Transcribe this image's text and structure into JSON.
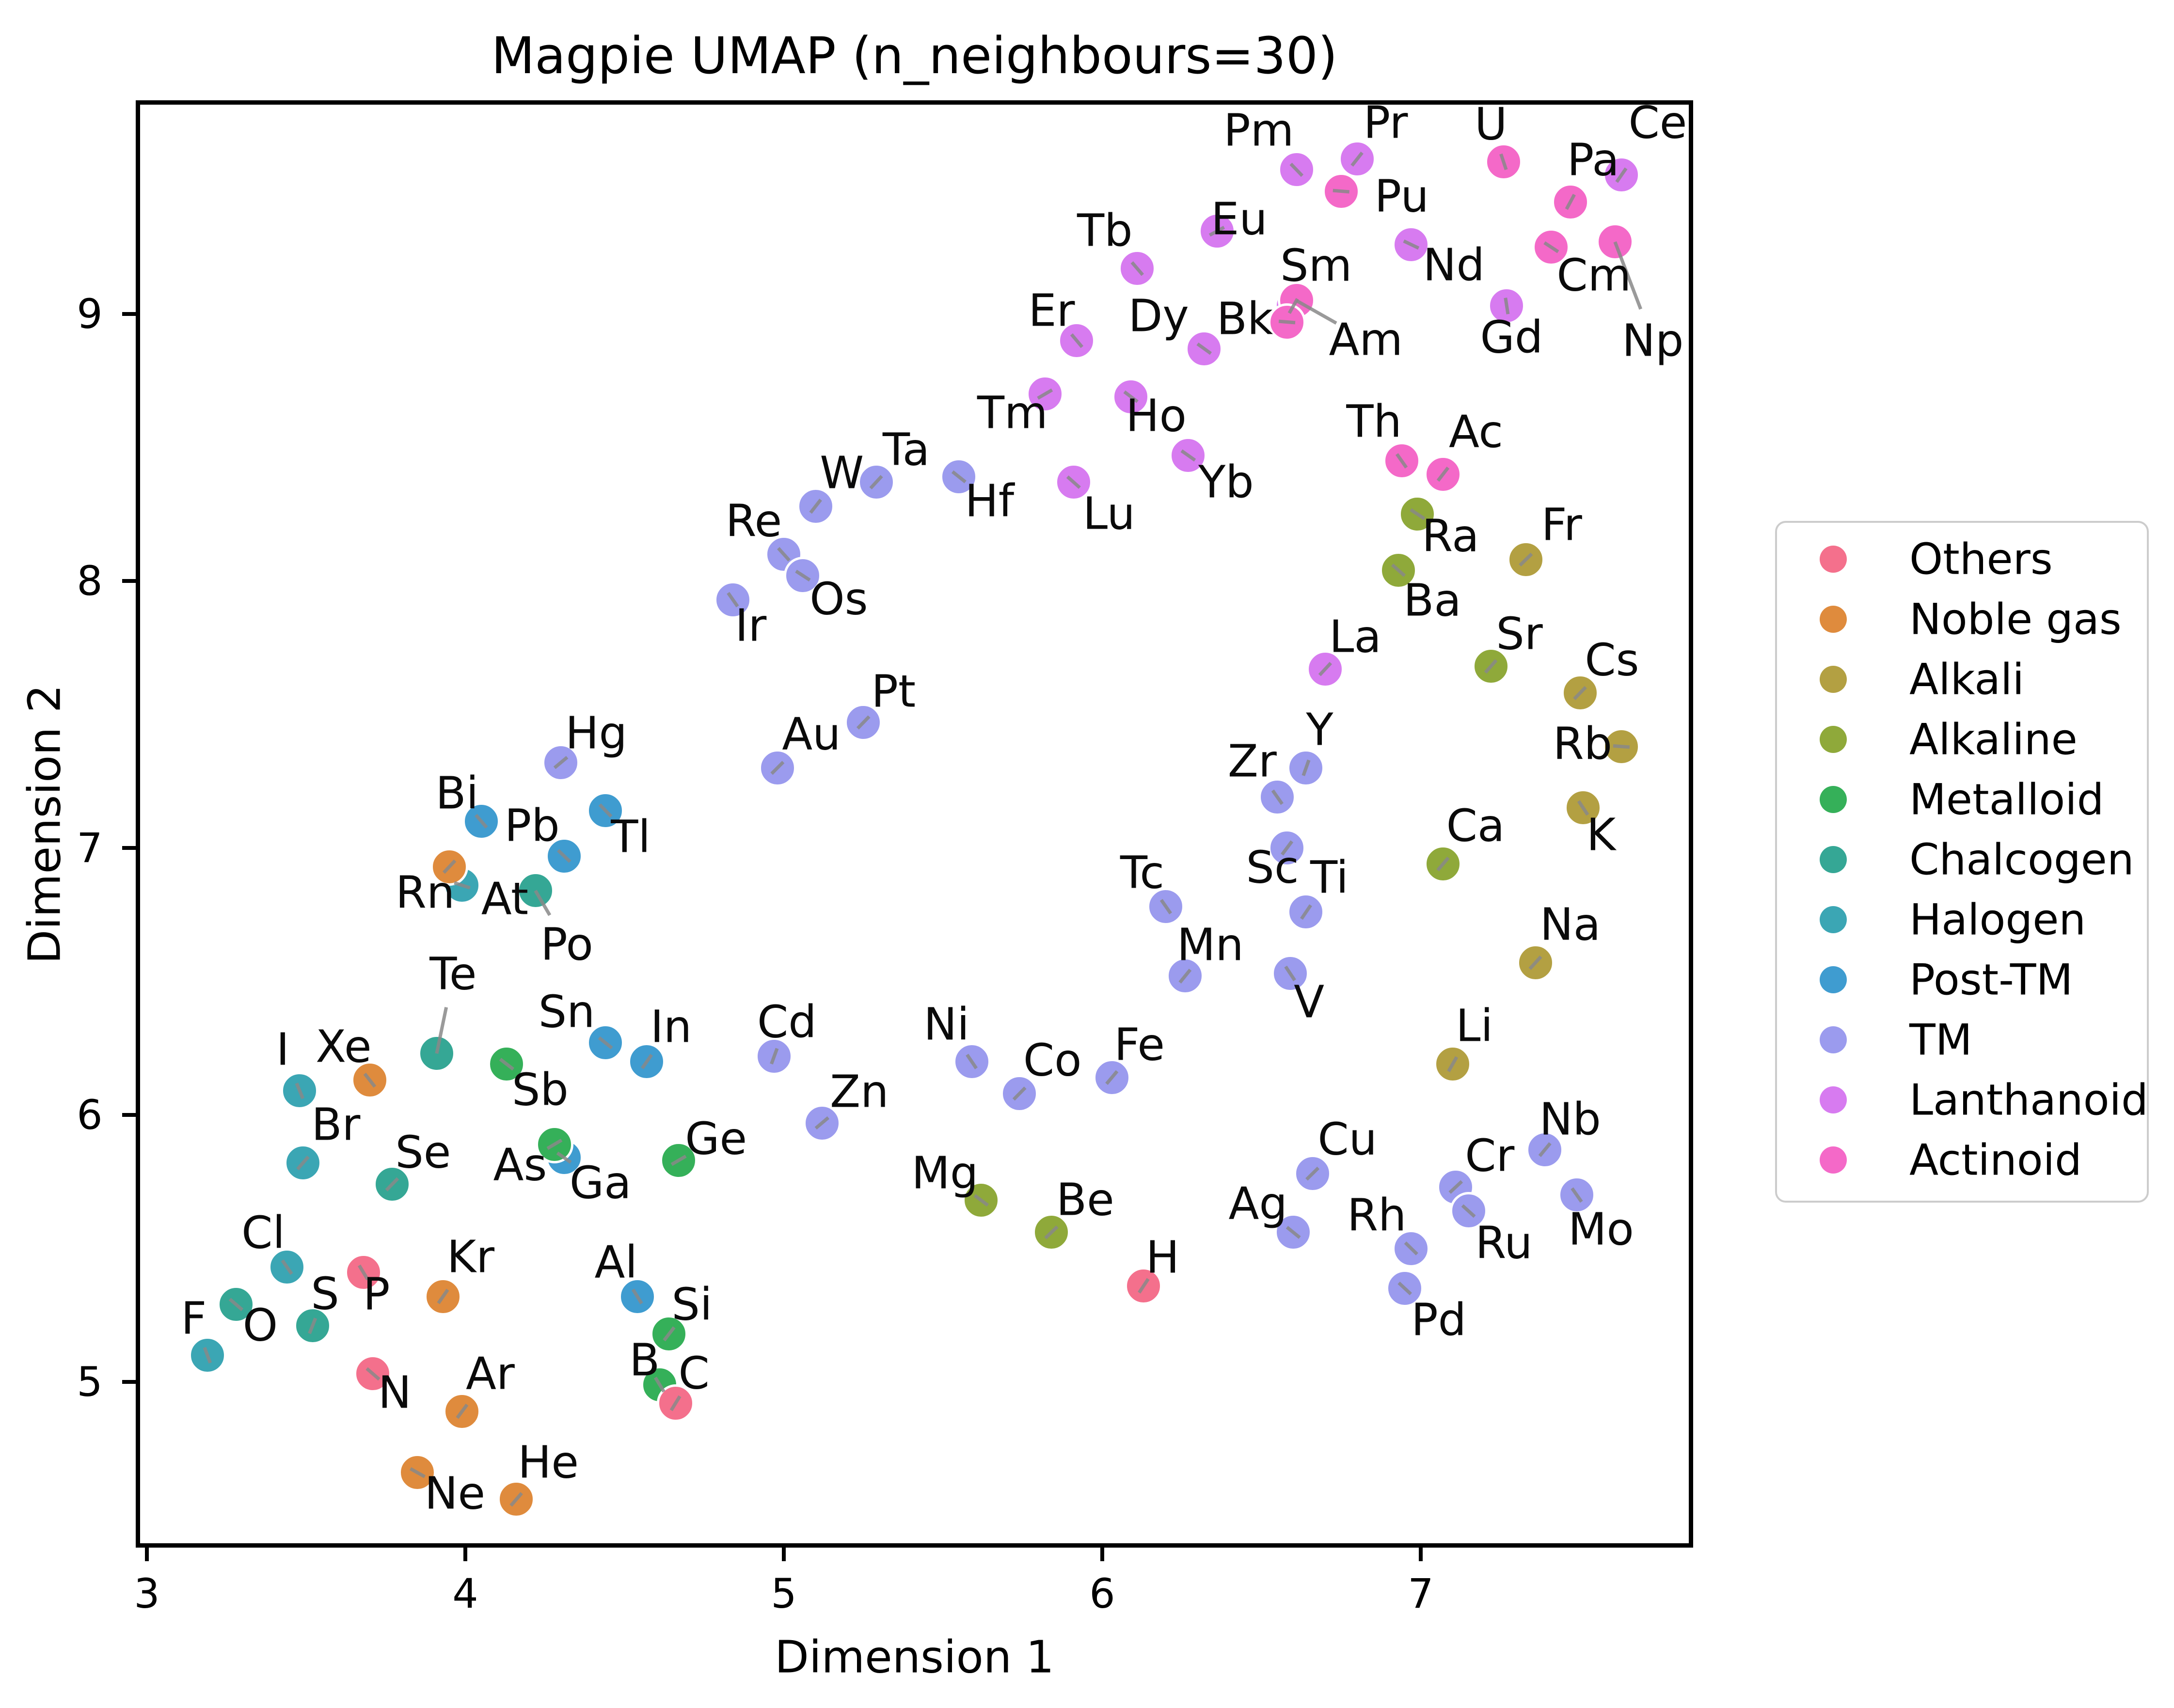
{
  "title": "Magpie UMAP (n_neighbours=30)",
  "axes": {
    "xlabel": "Dimension 1",
    "ylabel": "Dimension 2",
    "x_ticks": [
      3,
      4,
      5,
      6,
      7
    ],
    "y_ticks": [
      5,
      6,
      7,
      8,
      9
    ]
  },
  "legend": [
    {
      "label": "Others",
      "color": "#f4708c"
    },
    {
      "label": "Noble gas",
      "color": "#df8b3d"
    },
    {
      "label": "Alkali",
      "color": "#b3a042"
    },
    {
      "label": "Alkaline",
      "color": "#8fa93a"
    },
    {
      "label": "Metalloid",
      "color": "#35b059"
    },
    {
      "label": "Chalcogen",
      "color": "#35a795"
    },
    {
      "label": "Halogen",
      "color": "#3ba6b4"
    },
    {
      "label": "Post-TM",
      "color": "#3f9cd0"
    },
    {
      "label": "TM",
      "color": "#9b9bee"
    },
    {
      "label": "Lanthanoid",
      "color": "#d77bf0"
    },
    {
      "label": "Actinoid",
      "color": "#f469c8"
    }
  ],
  "chart_data": {
    "type": "scatter",
    "title": "Magpie UMAP (n_neighbours=30)",
    "xlabel": "Dimension 1",
    "ylabel": "Dimension 2",
    "xlim": [
      2.98,
      7.86
    ],
    "ylim": [
      4.36,
      9.79
    ],
    "grid": false,
    "legend_position": "right",
    "note": "Each point is a chemical element labeled by symbol; lx/ly are label pixel offsets; conn=true draws a gray connector line from point to label.",
    "series": [
      {
        "name": "TM",
        "color": "#9b9bee",
        "points": [
          {
            "el": "Sc",
            "x": 6.58,
            "y": 7.0,
            "lx": -30,
            "ly": 40
          },
          {
            "el": "Ti",
            "x": 6.64,
            "y": 6.76,
            "lx": 48,
            "ly": -71
          },
          {
            "el": "V",
            "x": 6.59,
            "y": 6.53,
            "lx": 39,
            "ly": 59
          },
          {
            "el": "Cr",
            "x": 7.11,
            "y": 5.73,
            "lx": 70,
            "ly": -65
          },
          {
            "el": "Mn",
            "x": 6.26,
            "y": 6.52,
            "lx": 52,
            "ly": -64
          },
          {
            "el": "Fe",
            "x": 6.03,
            "y": 6.14,
            "lx": 57,
            "ly": -68
          },
          {
            "el": "Co",
            "x": 5.74,
            "y": 6.08,
            "lx": 68,
            "ly": -69
          },
          {
            "el": "Ni",
            "x": 5.59,
            "y": 6.2,
            "lx": -52,
            "ly": -77
          },
          {
            "el": "Cu",
            "x": 6.66,
            "y": 5.78,
            "lx": 72,
            "ly": -71
          },
          {
            "el": "Zn",
            "x": 5.12,
            "y": 5.97,
            "lx": 77,
            "ly": -65
          },
          {
            "el": "Y",
            "x": 6.64,
            "y": 7.3,
            "lx": 28,
            "ly": -79
          },
          {
            "el": "Zr",
            "x": 6.55,
            "y": 7.19,
            "lx": -52,
            "ly": -74
          },
          {
            "el": "Nb",
            "x": 7.39,
            "y": 5.87,
            "lx": 52,
            "ly": -63
          },
          {
            "el": "Mo",
            "x": 7.49,
            "y": 5.7,
            "lx": 50,
            "ly": 71
          },
          {
            "el": "Tc",
            "x": 6.2,
            "y": 6.78,
            "lx": -49,
            "ly": -70
          },
          {
            "el": "Ru",
            "x": 7.15,
            "y": 5.64,
            "lx": 73,
            "ly": 66
          },
          {
            "el": "Rh",
            "x": 6.97,
            "y": 5.5,
            "lx": -71,
            "ly": -69
          },
          {
            "el": "Pd",
            "x": 6.95,
            "y": 5.35,
            "lx": 70,
            "ly": 65
          },
          {
            "el": "Ag",
            "x": 6.6,
            "y": 5.56,
            "lx": -73,
            "ly": -59
          },
          {
            "el": "Cd",
            "x": 4.97,
            "y": 6.22,
            "lx": 26,
            "ly": -71
          },
          {
            "el": "Hf",
            "x": 5.55,
            "y": 8.39,
            "lx": 63,
            "ly": 50
          },
          {
            "el": "Ta",
            "x": 5.29,
            "y": 8.37,
            "lx": 62,
            "ly": -67
          },
          {
            "el": "W",
            "x": 5.1,
            "y": 8.28,
            "lx": 54,
            "ly": -69
          },
          {
            "el": "Re",
            "x": 5.0,
            "y": 8.1,
            "lx": -62,
            "ly": -69
          },
          {
            "el": "Os",
            "x": 5.06,
            "y": 8.02,
            "lx": 74,
            "ly": 48
          },
          {
            "el": "Ir",
            "x": 4.84,
            "y": 7.93,
            "lx": 37,
            "ly": 53
          },
          {
            "el": "Pt",
            "x": 5.25,
            "y": 7.47,
            "lx": 62,
            "ly": -64
          },
          {
            "el": "Au",
            "x": 4.98,
            "y": 7.3,
            "lx": 70,
            "ly": -70
          },
          {
            "el": "Hg",
            "x": 4.3,
            "y": 7.32,
            "lx": 73,
            "ly": -61
          }
        ]
      },
      {
        "name": "Lanthanoid",
        "color": "#d77bf0",
        "points": [
          {
            "el": "La",
            "x": 6.7,
            "y": 7.67,
            "lx": 62,
            "ly": -67
          },
          {
            "el": "Ce",
            "x": 7.63,
            "y": 9.52,
            "lx": 75,
            "ly": -108
          },
          {
            "el": "Pr",
            "x": 6.8,
            "y": 9.58,
            "lx": 59,
            "ly": -75
          },
          {
            "el": "Nd",
            "x": 6.97,
            "y": 9.26,
            "lx": 88,
            "ly": 42
          },
          {
            "el": "Pm",
            "x": 6.61,
            "y": 9.54,
            "lx": -78,
            "ly": -81
          },
          {
            "el": "Sm",
            "x": 6.6,
            "y": 9.03,
            "lx": 47,
            "ly": -83
          },
          {
            "el": "Eu",
            "x": 6.36,
            "y": 9.31,
            "lx": 46,
            "ly": -25
          },
          {
            "el": "Gd",
            "x": 7.27,
            "y": 9.03,
            "lx": 10,
            "ly": 65
          },
          {
            "el": "Tb",
            "x": 6.11,
            "y": 9.17,
            "lx": -67,
            "ly": -78
          },
          {
            "el": "Dy",
            "x": 6.32,
            "y": 8.87,
            "lx": -94,
            "ly": -68
          },
          {
            "el": "Ho",
            "x": 6.09,
            "y": 8.69,
            "lx": 52,
            "ly": 39
          },
          {
            "el": "Er",
            "x": 5.92,
            "y": 8.9,
            "lx": -52,
            "ly": -62
          },
          {
            "el": "Tm",
            "x": 5.82,
            "y": 8.7,
            "lx": -67,
            "ly": 39
          },
          {
            "el": "Yb",
            "x": 6.27,
            "y": 8.47,
            "lx": 78,
            "ly": 55
          },
          {
            "el": "Lu",
            "x": 5.91,
            "y": 8.37,
            "lx": 73,
            "ly": 65
          }
        ]
      },
      {
        "name": "Post-TM",
        "color": "#3f9cd0",
        "points": [
          {
            "el": "Al",
            "x": 4.54,
            "y": 5.32,
            "lx": -44,
            "ly": -71
          },
          {
            "el": "Ga",
            "x": 4.31,
            "y": 5.84,
            "lx": 75,
            "ly": 52
          },
          {
            "el": "In",
            "x": 4.57,
            "y": 6.2,
            "lx": 50,
            "ly": -72
          },
          {
            "el": "Sn",
            "x": 4.44,
            "y": 6.27,
            "lx": -80,
            "ly": -64
          },
          {
            "el": "Tl",
            "x": 4.44,
            "y": 7.14,
            "lx": 52,
            "ly": 54
          },
          {
            "el": "Pb",
            "x": 4.31,
            "y": 6.97,
            "lx": -66,
            "ly": -63
          },
          {
            "el": "Bi",
            "x": 4.05,
            "y": 7.1,
            "lx": -50,
            "ly": -58
          }
        ]
      },
      {
        "name": "Halogen",
        "color": "#3ba6b4",
        "points": [
          {
            "el": "F",
            "x": 3.19,
            "y": 5.1,
            "lx": -28,
            "ly": -76
          },
          {
            "el": "Cl",
            "x": 3.44,
            "y": 5.43,
            "lx": -49,
            "ly": -71
          },
          {
            "el": "Br",
            "x": 3.49,
            "y": 5.82,
            "lx": 68,
            "ly": -79
          },
          {
            "el": "I",
            "x": 3.48,
            "y": 6.09,
            "lx": -35,
            "ly": -85
          },
          {
            "el": "At",
            "x": 3.99,
            "y": 6.86,
            "lx": 88,
            "ly": 28
          }
        ]
      },
      {
        "name": "Chalcogen",
        "color": "#35a795",
        "points": [
          {
            "el": "O",
            "x": 3.28,
            "y": 5.29,
            "lx": 50,
            "ly": 43
          },
          {
            "el": "S",
            "x": 3.52,
            "y": 5.21,
            "lx": 26,
            "ly": -66
          },
          {
            "el": "Se",
            "x": 3.77,
            "y": 5.74,
            "lx": 64,
            "ly": -66
          },
          {
            "el": "Te",
            "x": 3.91,
            "y": 6.23,
            "lx": 34,
            "ly": -164,
            "conn": true
          },
          {
            "el": "Po",
            "x": 4.22,
            "y": 6.84,
            "lx": 65,
            "ly": 111,
            "conn": true
          }
        ]
      },
      {
        "name": "Metalloid",
        "color": "#35b059",
        "points": [
          {
            "el": "B",
            "x": 4.61,
            "y": 4.99,
            "lx": -31,
            "ly": -51
          },
          {
            "el": "Si",
            "x": 4.64,
            "y": 5.18,
            "lx": 47,
            "ly": -61
          },
          {
            "el": "Ge",
            "x": 4.67,
            "y": 5.83,
            "lx": 77,
            "ly": -45
          },
          {
            "el": "As",
            "x": 4.28,
            "y": 5.89,
            "lx": -71,
            "ly": 42
          },
          {
            "el": "Sb",
            "x": 4.13,
            "y": 6.19,
            "lx": 69,
            "ly": 53
          }
        ]
      },
      {
        "name": "Alkaline",
        "color": "#8fa93a",
        "points": [
          {
            "el": "Be",
            "x": 5.84,
            "y": 5.56,
            "lx": 70,
            "ly": -67
          },
          {
            "el": "Mg",
            "x": 5.62,
            "y": 5.68,
            "lx": -75,
            "ly": -56
          },
          {
            "el": "Ca",
            "x": 7.07,
            "y": 6.94,
            "lx": 67,
            "ly": -79
          },
          {
            "el": "Sr",
            "x": 7.22,
            "y": 7.68,
            "lx": 59,
            "ly": -67
          },
          {
            "el": "Ba",
            "x": 6.93,
            "y": 8.04,
            "lx": 70,
            "ly": 62
          },
          {
            "el": "Ra",
            "x": 6.99,
            "y": 8.25,
            "lx": 68,
            "ly": 45
          }
        ]
      },
      {
        "name": "Alkali",
        "color": "#b3a042",
        "points": [
          {
            "el": "Li",
            "x": 7.1,
            "y": 6.19,
            "lx": 45,
            "ly": -79
          },
          {
            "el": "Na",
            "x": 7.36,
            "y": 6.57,
            "lx": 72,
            "ly": -79
          },
          {
            "el": "K",
            "x": 7.51,
            "y": 7.15,
            "lx": 37,
            "ly": 56
          },
          {
            "el": "Rb",
            "x": 7.63,
            "y": 7.38,
            "lx": -80,
            "ly": -6
          },
          {
            "el": "Cs",
            "x": 7.5,
            "y": 7.58,
            "lx": 66,
            "ly": -68
          },
          {
            "el": "Fr",
            "x": 7.33,
            "y": 8.08,
            "lx": 74,
            "ly": -72
          }
        ]
      },
      {
        "name": "Noble gas",
        "color": "#df8b3d",
        "points": [
          {
            "el": "He",
            "x": 4.16,
            "y": 4.56,
            "lx": 66,
            "ly": -76
          },
          {
            "el": "Ne",
            "x": 3.85,
            "y": 4.66,
            "lx": 77,
            "ly": 43
          },
          {
            "el": "Ar",
            "x": 3.99,
            "y": 4.89,
            "lx": 58,
            "ly": -78
          },
          {
            "el": "Kr",
            "x": 3.93,
            "y": 5.32,
            "lx": 57,
            "ly": -82
          },
          {
            "el": "Xe",
            "x": 3.7,
            "y": 6.13,
            "lx": -54,
            "ly": -69
          },
          {
            "el": "Rn",
            "x": 3.95,
            "y": 6.93,
            "lx": -50,
            "ly": 53
          }
        ]
      },
      {
        "name": "Others",
        "color": "#f4708c",
        "points": [
          {
            "el": "H",
            "x": 6.13,
            "y": 5.36,
            "lx": 39,
            "ly": -59
          },
          {
            "el": "C",
            "x": 4.66,
            "y": 4.92,
            "lx": 38,
            "ly": -62
          },
          {
            "el": "N",
            "x": 3.71,
            "y": 5.03,
            "lx": 45,
            "ly": 39
          },
          {
            "el": "P",
            "x": 3.68,
            "y": 5.41,
            "lx": 27,
            "ly": 45
          }
        ]
      },
      {
        "name": "Actinoid",
        "color": "#f469c8",
        "points": [
          {
            "el": "Ac",
            "x": 7.07,
            "y": 8.4,
            "lx": 68,
            "ly": -88
          },
          {
            "el": "Th",
            "x": 6.94,
            "y": 8.45,
            "lx": -57,
            "ly": -81
          },
          {
            "el": "Pa",
            "x": 7.47,
            "y": 9.42,
            "lx": 47,
            "ly": -87
          },
          {
            "el": "U",
            "x": 7.26,
            "y": 9.57,
            "lx": -26,
            "ly": -78
          },
          {
            "el": "Np",
            "x": 7.61,
            "y": 9.27,
            "lx": 78,
            "ly": 204,
            "conn": true
          },
          {
            "el": "Pu",
            "x": 6.75,
            "y": 9.46,
            "lx": 125,
            "ly": 10
          },
          {
            "el": "Am",
            "x": 6.61,
            "y": 9.05,
            "lx": 143,
            "ly": 81,
            "conn": true
          },
          {
            "el": "Cm",
            "x": 7.41,
            "y": 9.25,
            "lx": 88,
            "ly": 58
          },
          {
            "el": "Bk",
            "x": 6.58,
            "y": 8.97,
            "lx": -87,
            "ly": -7
          }
        ]
      }
    ]
  }
}
